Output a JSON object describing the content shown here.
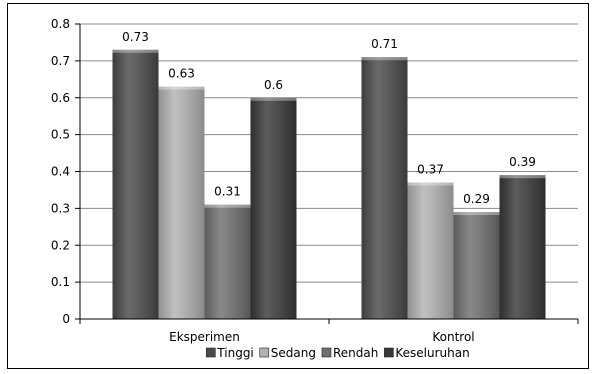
{
  "chart_data": {
    "type": "bar",
    "title": "",
    "xlabel": "",
    "ylabel": "",
    "categories": [
      "Eksperimen",
      "Kontrol"
    ],
    "series": [
      {
        "name": "Tinggi",
        "values": [
          0.73,
          0.71
        ],
        "labels": [
          "0.73",
          "0.71"
        ],
        "color": "#4a4a4a"
      },
      {
        "name": "Sedang",
        "values": [
          0.63,
          0.37
        ],
        "labels": [
          "0.63",
          "0.37"
        ],
        "color": "#b2b2b2"
      },
      {
        "name": "Rendah",
        "values": [
          0.31,
          0.29
        ],
        "labels": [
          "0.31",
          "0.29"
        ],
        "color": "#6f6f6f"
      },
      {
        "name": "Keseluruhan",
        "values": [
          0.6,
          0.39
        ],
        "labels": [
          "0.6",
          "0.39"
        ],
        "color": "#383838"
      }
    ],
    "ylim": [
      0,
      0.8
    ],
    "yticks": [
      0,
      0.1,
      0.2,
      0.3,
      0.4,
      0.5,
      0.6,
      0.7,
      0.8
    ],
    "ytick_labels": [
      "0",
      "0.1",
      "0.2",
      "0.3",
      "0.4",
      "0.5",
      "0.6",
      "0.7",
      "0.8"
    ],
    "grid": true,
    "legend": "bottom"
  }
}
